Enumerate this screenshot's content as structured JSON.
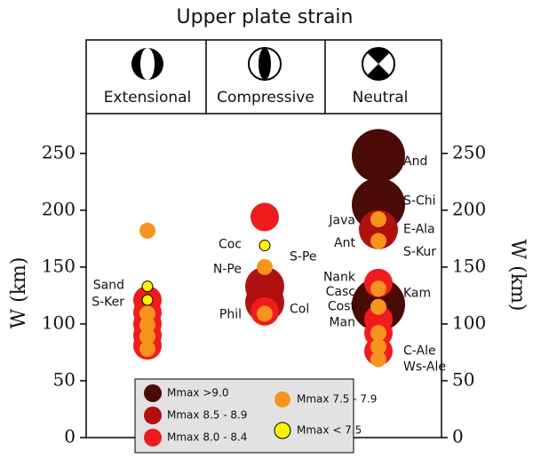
{
  "chart_data": {
    "type": "scatter",
    "title": "Upper plate strain",
    "categories": [
      "Extensional",
      "Compressive",
      "Neutral"
    ],
    "y_label": "W (km)",
    "ylim": [
      0,
      285
    ],
    "yticks": [
      0,
      50,
      100,
      150,
      200,
      250
    ],
    "series": [
      {
        "name": "Mmax >9.0",
        "color": "#4a0a05",
        "x": [
          "Neutral",
          "Neutral",
          "Neutral"
        ],
        "values": [
          248,
          205,
          117
        ]
      },
      {
        "name": "Mmax 8.5 - 8.9",
        "color": "#b01010",
        "x": [
          "Compressive",
          "Compressive",
          "Neutral"
        ],
        "values": [
          133,
          119,
          183
        ]
      },
      {
        "name": "Mmax 8.0 - 8.4",
        "color": "#ee1c1c",
        "x": [
          "Extensional",
          "Extensional",
          "Extensional",
          "Extensional",
          "Extensional",
          "Compressive",
          "Compressive",
          "Neutral",
          "Neutral",
          "Neutral",
          "Neutral"
        ],
        "values": [
          121,
          110,
          100,
          90,
          81,
          194,
          111,
          136,
          104,
          92,
          76
        ]
      },
      {
        "name": "Mmax 7.5 - 7.9",
        "color": "#f7941d",
        "x": [
          "Extensional",
          "Extensional",
          "Extensional",
          "Extensional",
          "Extensional",
          "Compressive",
          "Compressive",
          "Neutral",
          "Neutral",
          "Neutral",
          "Neutral",
          "Neutral",
          "Neutral",
          "Neutral"
        ],
        "values": [
          182,
          109,
          99,
          89,
          78,
          150,
          109,
          192,
          173,
          131,
          115,
          92,
          80,
          69
        ]
      },
      {
        "name": "Mmax < 7.5",
        "color": "#fff200",
        "x": [
          "Extensional",
          "Extensional",
          "Compressive"
        ],
        "values": [
          133,
          121,
          169
        ]
      }
    ],
    "annotations": [
      {
        "text": "Sand",
        "category": "Extensional",
        "y": 134,
        "side": "left"
      },
      {
        "text": "S-Ker",
        "category": "Extensional",
        "y": 119,
        "side": "left"
      },
      {
        "text": "Coc",
        "category": "Compressive",
        "y": 170,
        "side": "left"
      },
      {
        "text": "S-Pe",
        "category": "Compressive",
        "y": 159,
        "side": "right"
      },
      {
        "text": "N-Pe",
        "category": "Compressive",
        "y": 148,
        "side": "left"
      },
      {
        "text": "Phil",
        "category": "Compressive",
        "y": 108,
        "side": "left"
      },
      {
        "text": "Col",
        "category": "Compressive",
        "y": 113,
        "side": "right"
      },
      {
        "text": "And",
        "category": "Neutral",
        "y": 243,
        "side": "right"
      },
      {
        "text": "S-Chi",
        "category": "Neutral",
        "y": 208,
        "side": "right"
      },
      {
        "text": "Java",
        "category": "Neutral",
        "y": 191,
        "side": "left"
      },
      {
        "text": "E-Ala",
        "category": "Neutral",
        "y": 183,
        "side": "right"
      },
      {
        "text": "Ant",
        "category": "Neutral",
        "y": 171,
        "side": "left"
      },
      {
        "text": "S-Kur",
        "category": "Neutral",
        "y": 163,
        "side": "right"
      },
      {
        "text": "Nank",
        "category": "Neutral",
        "y": 141,
        "side": "left"
      },
      {
        "text": "Casc",
        "category": "Neutral",
        "y": 128,
        "side": "left"
      },
      {
        "text": "Kam",
        "category": "Neutral",
        "y": 127,
        "side": "right"
      },
      {
        "text": "Cost",
        "category": "Neutral",
        "y": 115,
        "side": "left"
      },
      {
        "text": "Man",
        "category": "Neutral",
        "y": 101,
        "side": "left"
      },
      {
        "text": "C-Ale",
        "category": "Neutral",
        "y": 76,
        "side": "right"
      },
      {
        "text": "Ws-Ale",
        "category": "Neutral",
        "y": 62,
        "side": "right"
      }
    ]
  }
}
